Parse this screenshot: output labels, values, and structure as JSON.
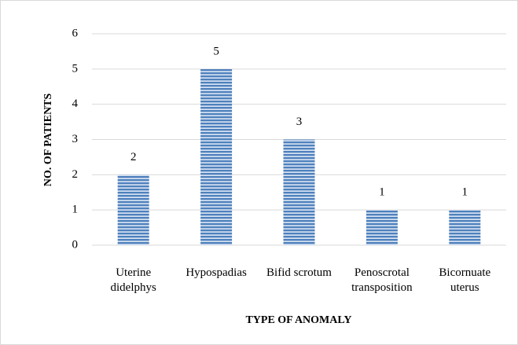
{
  "chart_data": {
    "type": "bar",
    "x_label": "TYPE OF ANOMALY",
    "y_label": "NO. OF PATIENTS",
    "categories": [
      "Uterine\ndidelphys",
      "Hypospadias",
      "Bifid scrotum",
      "Penoscrotal\ntransposition",
      "Bicornuate\nuterus"
    ],
    "values": [
      2,
      5,
      3,
      1,
      1
    ],
    "color": "#4f81bd",
    "ylim": [
      0,
      6
    ],
    "yticks": [
      0,
      1,
      2,
      3,
      4,
      5,
      6
    ],
    "grid": true
  }
}
